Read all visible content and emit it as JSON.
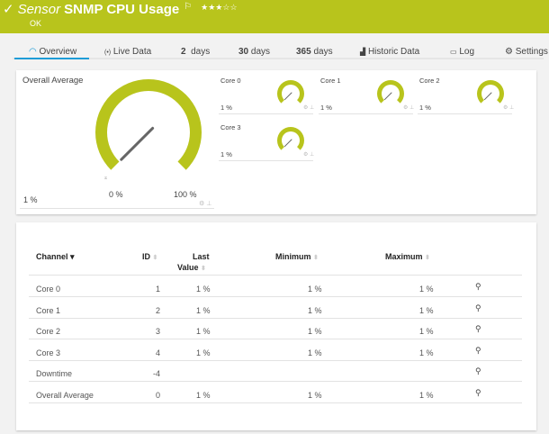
{
  "header": {
    "check_icon": "checkmark",
    "prefix": "Sensor",
    "title": "SNMP CPU Usage",
    "flag_icon": "flag",
    "stars": "★★★☆☆",
    "rating": 3,
    "status": "OK",
    "accent": "#b8c41c"
  },
  "tabs": [
    {
      "icon": "gauge",
      "label": "Overview",
      "active": true
    },
    {
      "icon": "radio-waves",
      "label": "Live Data"
    },
    {
      "num": "2",
      "label": "days"
    },
    {
      "num": "30",
      "label": "days"
    },
    {
      "num": "365",
      "label": "days"
    },
    {
      "icon": "area-chart",
      "label": "Historic Data"
    },
    {
      "icon": "log",
      "label": "Log"
    },
    {
      "icon": "gear",
      "label": "Settings"
    }
  ],
  "overview": {
    "main": {
      "title": "Overall Average",
      "value": "1 %",
      "min_label": "0 %",
      "max_label": "100 %",
      "marker": "⌅",
      "percent": 1
    },
    "cores": [
      {
        "title": "Core 0",
        "value": "1 %",
        "percent": 1
      },
      {
        "title": "Core 1",
        "value": "1 %",
        "percent": 1
      },
      {
        "title": "Core 2",
        "value": "1 %",
        "percent": 1
      },
      {
        "title": "Core 3",
        "value": "1 %",
        "percent": 1
      }
    ]
  },
  "table": {
    "headers": {
      "channel": "Channel",
      "id": "ID",
      "last1": "Last",
      "last2": "Value",
      "minimum": "Minimum",
      "maximum": "Maximum"
    },
    "rows": [
      {
        "channel": "Core 0",
        "id": "1",
        "last": "1 %",
        "min": "1 %",
        "max": "1 %"
      },
      {
        "channel": "Core 1",
        "id": "2",
        "last": "1 %",
        "min": "1 %",
        "max": "1 %"
      },
      {
        "channel": "Core 2",
        "id": "3",
        "last": "1 %",
        "min": "1 %",
        "max": "1 %"
      },
      {
        "channel": "Core 3",
        "id": "4",
        "last": "1 %",
        "min": "1 %",
        "max": "1 %"
      },
      {
        "channel": "Downtime",
        "id": "-4",
        "last": "",
        "min": "",
        "max": ""
      },
      {
        "channel": "Overall Average",
        "id": "0",
        "last": "1 %",
        "min": "1 %",
        "max": "1 %"
      }
    ]
  }
}
